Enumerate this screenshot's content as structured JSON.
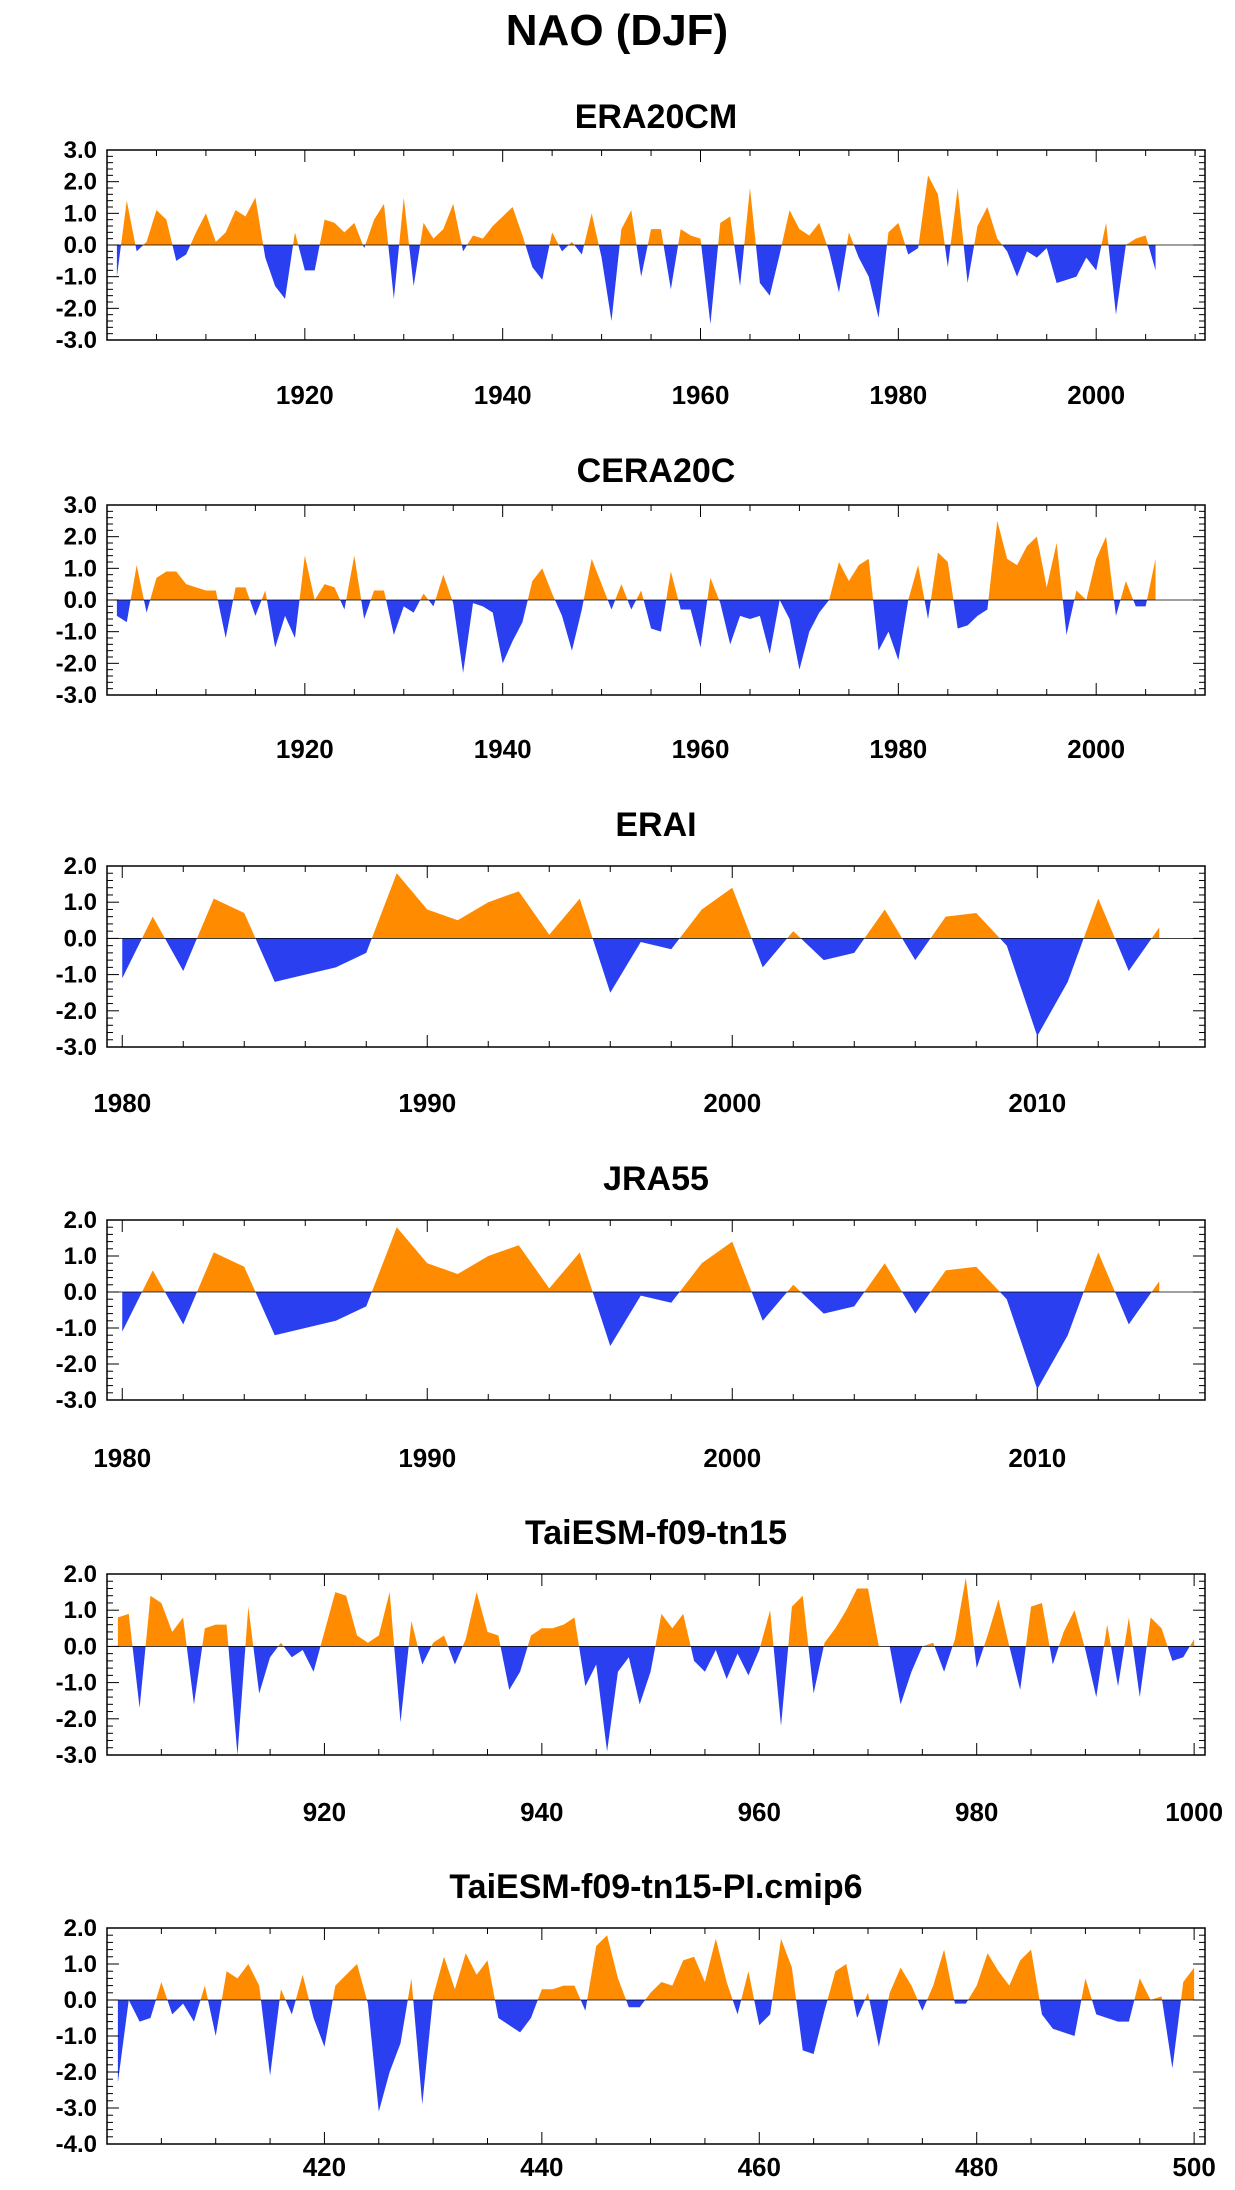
{
  "figure": {
    "title": "NAO (DJF)",
    "colors": {
      "positive": "#ff8c00",
      "negative": "#2a3ff0",
      "frame": "#000000",
      "zero_line": "#000000"
    }
  },
  "chart_data": [
    {
      "type": "area",
      "title": "ERA20CM",
      "xlim": [
        1900,
        2011
      ],
      "ylim": [
        -3.0,
        3.0
      ],
      "yticks": [
        3.0,
        2.0,
        1.0,
        0.0,
        -1.0,
        -2.0,
        -3.0
      ],
      "ytick_labels": [
        "3.0",
        "2.0",
        "1.0",
        "0.0",
        "-1.0",
        "-2.0",
        "-3.0"
      ],
      "xticks": [
        1920,
        1940,
        1960,
        1980,
        2000
      ],
      "xtick_labels": [
        "1920",
        "1940",
        "1960",
        "1980",
        "2000"
      ],
      "x_start": 1901,
      "y": [
        -1.0,
        1.4,
        -0.2,
        0.1,
        1.1,
        0.8,
        -0.5,
        -0.3,
        0.4,
        1.0,
        0.1,
        0.4,
        1.1,
        0.9,
        1.5,
        -0.4,
        -1.3,
        -1.7,
        0.4,
        -0.8,
        -0.8,
        0.8,
        0.7,
        0.4,
        0.7,
        -0.1,
        0.8,
        1.3,
        -1.7,
        1.5,
        -1.3,
        0.7,
        0.2,
        0.5,
        1.3,
        -0.2,
        0.3,
        0.2,
        0.6,
        0.9,
        1.2,
        0.3,
        -0.7,
        -1.1,
        0.4,
        -0.2,
        0.1,
        -0.3,
        1.0,
        -0.4,
        -2.4,
        0.5,
        1.1,
        -1.0,
        0.5,
        0.5,
        -1.4,
        0.5,
        0.3,
        0.2,
        -2.5,
        0.7,
        0.9,
        -1.3,
        1.8,
        -1.2,
        -1.6,
        -0.3,
        1.1,
        0.5,
        0.3,
        0.7,
        -0.2,
        -1.5,
        0.4,
        -0.4,
        -1.0,
        -2.3,
        0.4,
        0.7,
        -0.3,
        -0.1,
        2.2,
        1.6,
        -0.7,
        1.8,
        -1.2,
        0.6,
        1.2,
        0.2,
        -0.2,
        -1.0,
        -0.2,
        -0.4,
        -0.1,
        -1.2,
        -1.1,
        -1.0,
        -0.4,
        -0.8,
        0.7,
        -2.2,
        0.0,
        0.2,
        0.3,
        -0.8
      ]
    },
    {
      "type": "area",
      "title": "CERA20C",
      "xlim": [
        1900,
        2011
      ],
      "ylim": [
        -3.0,
        3.0
      ],
      "yticks": [
        3.0,
        2.0,
        1.0,
        0.0,
        -1.0,
        -2.0,
        -3.0
      ],
      "ytick_labels": [
        "3.0",
        "2.0",
        "1.0",
        "0.0",
        "-1.0",
        "-2.0",
        "-3.0"
      ],
      "xticks": [
        1920,
        1940,
        1960,
        1980,
        2000
      ],
      "xtick_labels": [
        "1920",
        "1940",
        "1960",
        "1980",
        "2000"
      ],
      "x_start": 1901,
      "y": [
        -0.5,
        -0.7,
        1.1,
        -0.4,
        0.7,
        0.9,
        0.9,
        0.5,
        0.4,
        0.3,
        0.3,
        -1.2,
        0.4,
        0.4,
        -0.5,
        0.3,
        -1.5,
        -0.5,
        -1.2,
        1.4,
        0.0,
        0.5,
        0.4,
        -0.3,
        1.4,
        -0.6,
        0.3,
        0.3,
        -1.1,
        -0.2,
        -0.4,
        0.2,
        -0.2,
        0.8,
        -0.1,
        -2.3,
        -0.1,
        -0.2,
        -0.4,
        -2.0,
        -1.3,
        -0.7,
        0.6,
        1.0,
        0.2,
        -0.5,
        -1.6,
        -0.3,
        1.3,
        0.5,
        -0.3,
        0.5,
        -0.3,
        0.3,
        -0.9,
        -1.0,
        0.9,
        -0.3,
        -0.3,
        -1.5,
        0.7,
        -0.1,
        -1.4,
        -0.5,
        -0.6,
        -0.5,
        -1.7,
        0.0,
        -0.6,
        -2.2,
        -1.0,
        -0.4,
        0.0,
        1.2,
        0.6,
        1.1,
        1.3,
        -1.6,
        -1.0,
        -1.9,
        0.0,
        1.1,
        -0.6,
        1.5,
        1.2,
        -0.9,
        -0.8,
        -0.5,
        -0.3,
        2.5,
        1.3,
        1.1,
        1.7,
        2.0,
        0.4,
        1.8,
        -1.1,
        0.3,
        0.0,
        1.3,
        2.0,
        -0.5,
        0.6,
        -0.2,
        -0.2,
        1.3
      ]
    },
    {
      "type": "area",
      "title": "ERAI",
      "xlim": [
        1979.5,
        2015.5
      ],
      "ylim": [
        -3.0,
        2.0
      ],
      "yticks": [
        2.0,
        1.0,
        0.0,
        -1.0,
        -2.0,
        -3.0
      ],
      "ytick_labels": [
        "2.0",
        "1.0",
        "0.0",
        "-1.0",
        "-2.0",
        "-3.0"
      ],
      "xticks": [
        1980,
        1990,
        2000,
        2010
      ],
      "xtick_labels": [
        "1980",
        "1990",
        "2000",
        "2010"
      ],
      "x_start": 1980,
      "y": [
        -1.1,
        0.6,
        -0.9,
        1.1,
        0.7,
        -1.2,
        -1.0,
        -0.8,
        -0.4,
        1.8,
        0.8,
        0.5,
        1.0,
        1.3,
        0.1,
        1.1,
        -1.5,
        -0.1,
        -0.3,
        0.8,
        1.4,
        -0.8,
        0.2,
        -0.6,
        -0.4,
        0.8,
        -0.6,
        0.6,
        0.7,
        -0.2,
        -2.7,
        -1.2,
        1.1,
        -0.9,
        0.3
      ]
    },
    {
      "type": "area",
      "title": "JRA55",
      "xlim": [
        1979.5,
        2015.5
      ],
      "ylim": [
        -3.0,
        2.0
      ],
      "yticks": [
        2.0,
        1.0,
        0.0,
        -1.0,
        -2.0,
        -3.0
      ],
      "ytick_labels": [
        "2.0",
        "1.0",
        "0.0",
        "-1.0",
        "-2.0",
        "-3.0"
      ],
      "xticks": [
        1980,
        1990,
        2000,
        2010
      ],
      "xtick_labels": [
        "1980",
        "1990",
        "2000",
        "2010"
      ],
      "x_start": 1980,
      "y": [
        -1.1,
        0.6,
        -0.9,
        1.1,
        0.7,
        -1.2,
        -1.0,
        -0.8,
        -0.4,
        1.8,
        0.8,
        0.5,
        1.0,
        1.3,
        0.1,
        1.1,
        -1.5,
        -0.1,
        -0.3,
        0.8,
        1.4,
        -0.8,
        0.2,
        -0.6,
        -0.4,
        0.8,
        -0.6,
        0.6,
        0.7,
        -0.2,
        -2.7,
        -1.2,
        1.1,
        -0.9,
        0.3
      ]
    },
    {
      "type": "area",
      "title": "TaiESM-f09-tn15",
      "xlim": [
        900,
        1001
      ],
      "ylim": [
        -3.0,
        2.0
      ],
      "yticks": [
        2.0,
        1.0,
        0.0,
        -1.0,
        -2.0,
        -3.0
      ],
      "ytick_labels": [
        "2.0",
        "1.0",
        "0.0",
        "-1.0",
        "-2.0",
        "-3.0"
      ],
      "xticks": [
        920,
        940,
        960,
        980,
        1000
      ],
      "xtick_labels": [
        "920",
        "940",
        "960",
        "980",
        "1000"
      ],
      "x_start": 901,
      "y": [
        0.8,
        0.9,
        -1.7,
        1.4,
        1.2,
        0.4,
        0.8,
        -1.6,
        0.5,
        0.6,
        0.6,
        -3.0,
        1.1,
        -1.3,
        -0.3,
        0.1,
        -0.3,
        -0.1,
        -0.7,
        0.4,
        1.5,
        1.4,
        0.3,
        0.1,
        0.3,
        1.5,
        -2.1,
        0.7,
        -0.5,
        0.1,
        0.3,
        -0.5,
        0.2,
        1.5,
        0.4,
        0.3,
        -1.2,
        -0.7,
        0.3,
        0.5,
        0.5,
        0.6,
        0.8,
        -1.1,
        -0.5,
        -2.9,
        -0.7,
        -0.3,
        -1.6,
        -0.7,
        0.9,
        0.5,
        0.9,
        -0.4,
        -0.7,
        -0.1,
        -0.9,
        -0.2,
        -0.8,
        -0.1,
        1.0,
        -2.2,
        1.1,
        1.4,
        -1.3,
        0.1,
        0.5,
        1.0,
        1.6,
        1.6,
        0.0,
        0.0,
        -1.6,
        -0.7,
        0.0,
        0.1,
        -0.7,
        0.2,
        1.9,
        -0.6,
        0.3,
        1.3,
        0.0,
        -1.2,
        1.1,
        1.2,
        -0.5,
        0.4,
        1.0,
        -0.1,
        -1.4,
        0.6,
        -1.1,
        0.8,
        -1.4,
        0.8,
        0.5,
        -0.4,
        -0.3,
        0.2
      ]
    },
    {
      "type": "area",
      "title": "TaiESM-f09-tn15-PI.cmip6",
      "xlim": [
        400,
        501
      ],
      "ylim": [
        -4.0,
        2.0
      ],
      "yticks": [
        2.0,
        1.0,
        0.0,
        -1.0,
        -2.0,
        -3.0,
        -4.0
      ],
      "ytick_labels": [
        "2.0",
        "1.0",
        "0.0",
        "-1.0",
        "-2.0",
        "-3.0",
        "-4.0"
      ],
      "xticks": [
        420,
        440,
        460,
        480,
        500
      ],
      "xtick_labels": [
        "420",
        "440",
        "460",
        "480",
        "500"
      ],
      "x_start": 401,
      "y": [
        -2.3,
        0.0,
        -0.6,
        -0.5,
        0.5,
        -0.4,
        -0.1,
        -0.6,
        0.4,
        -1.0,
        0.8,
        0.6,
        1.0,
        0.4,
        -2.1,
        0.3,
        -0.4,
        0.7,
        -0.5,
        -1.3,
        0.4,
        0.7,
        1.0,
        -0.1,
        -3.1,
        -2.0,
        -1.2,
        0.6,
        -2.9,
        0.1,
        1.2,
        0.3,
        1.3,
        0.7,
        1.1,
        -0.5,
        -0.7,
        -0.9,
        -0.5,
        0.3,
        0.3,
        0.4,
        0.4,
        -0.3,
        1.5,
        1.8,
        0.6,
        -0.2,
        -0.2,
        0.2,
        0.5,
        0.4,
        1.1,
        1.2,
        0.5,
        1.7,
        0.5,
        -0.4,
        0.8,
        -0.7,
        -0.4,
        1.7,
        0.9,
        -1.4,
        -1.5,
        -0.3,
        0.8,
        1.0,
        -0.5,
        0.2,
        -1.3,
        0.2,
        0.9,
        0.4,
        -0.3,
        0.4,
        1.4,
        -0.1,
        -0.1,
        0.4,
        1.3,
        0.8,
        0.4,
        1.1,
        1.4,
        -0.4,
        -0.8,
        -0.9,
        -1.0,
        0.6,
        -0.4,
        -0.5,
        -0.6,
        -0.6,
        0.6,
        0.0,
        0.1,
        -1.9,
        0.5,
        0.9
      ]
    }
  ]
}
